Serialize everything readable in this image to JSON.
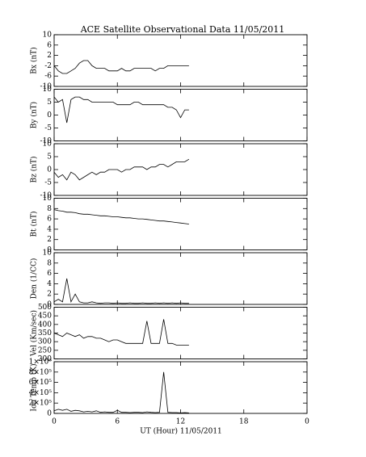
{
  "title": "ACE Satellite Observational Data   11/05/2011",
  "xlabel": "UT (Hour)  11/05/2011",
  "chart_data": [
    {
      "type": "line",
      "ylabel": "Bx (nT)",
      "ylim": [
        -10,
        10
      ],
      "yticks": [
        10,
        6,
        2,
        -2,
        -6,
        -10
      ],
      "x": [
        0,
        0.4,
        0.8,
        1.2,
        1.6,
        2,
        2.4,
        2.8,
        3.2,
        3.6,
        4,
        4.4,
        4.8,
        5.2,
        5.6,
        6,
        6.4,
        6.8,
        7.2,
        7.6,
        8,
        8.4,
        8.8,
        9.2,
        9.6,
        10,
        10.4,
        10.8,
        11.2,
        11.6,
        12,
        12.4,
        12.8
      ],
      "values": [
        -2,
        -4,
        -5,
        -5,
        -4,
        -3,
        -1,
        0,
        0,
        -2,
        -3,
        -3,
        -3,
        -4,
        -4,
        -4,
        -3,
        -4,
        -4,
        -3,
        -3,
        -3,
        -3,
        -3,
        -4,
        -3,
        -3,
        -2,
        -2,
        -2,
        -2,
        -2,
        -2
      ]
    },
    {
      "type": "line",
      "ylabel": "By (nT)",
      "ylim": [
        -10,
        10
      ],
      "yticks": [
        10,
        5,
        0,
        -5,
        -10
      ],
      "x": [
        0,
        0.4,
        0.8,
        1.2,
        1.6,
        2,
        2.4,
        2.8,
        3.2,
        3.6,
        4,
        4.4,
        4.8,
        5.2,
        5.6,
        6,
        6.4,
        6.8,
        7.2,
        7.6,
        8,
        8.4,
        8.8,
        9.2,
        9.6,
        10,
        10.4,
        10.8,
        11.2,
        11.6,
        12,
        12.4,
        12.8
      ],
      "values": [
        7,
        5,
        6,
        -3,
        6,
        7,
        7,
        6,
        6,
        5,
        5,
        5,
        5,
        5,
        5,
        4,
        4,
        4,
        4,
        5,
        5,
        4,
        4,
        4,
        4,
        4,
        4,
        3,
        3,
        2,
        -1,
        2,
        2
      ]
    },
    {
      "type": "line",
      "ylabel": "Bz (nT)",
      "ylim": [
        -10,
        10
      ],
      "yticks": [
        10,
        5,
        0,
        -5,
        -10
      ],
      "x": [
        0,
        0.4,
        0.8,
        1.2,
        1.6,
        2,
        2.4,
        2.8,
        3.2,
        3.6,
        4,
        4.4,
        4.8,
        5.2,
        5.6,
        6,
        6.4,
        6.8,
        7.2,
        7.6,
        8,
        8.4,
        8.8,
        9.2,
        9.6,
        10,
        10.4,
        10.8,
        11.2,
        11.6,
        12,
        12.4,
        12.8
      ],
      "values": [
        -1,
        -3,
        -2,
        -4,
        -1,
        -2,
        -4,
        -3,
        -2,
        -1,
        -2,
        -1,
        -1,
        0,
        0,
        0,
        -1,
        0,
        0,
        1,
        1,
        1,
        0,
        1,
        1,
        2,
        2,
        1,
        2,
        3,
        3,
        3,
        4
      ]
    },
    {
      "type": "line",
      "ylabel": "Bt (nT)",
      "ylim": [
        0,
        10
      ],
      "yticks": [
        10,
        8,
        6,
        4,
        2,
        0
      ],
      "x": [
        0,
        0.4,
        0.8,
        1.2,
        1.6,
        2,
        2.4,
        2.8,
        3.2,
        3.6,
        4,
        4.4,
        4.8,
        5.2,
        5.6,
        6,
        6.4,
        6.8,
        7.2,
        7.6,
        8,
        8.4,
        8.8,
        9.2,
        9.6,
        10,
        10.4,
        10.8,
        11.2,
        11.6,
        12,
        12.4,
        12.8
      ],
      "values": [
        7.8,
        7.6,
        7.5,
        7.3,
        7.3,
        7.2,
        7,
        6.9,
        6.9,
        6.8,
        6.7,
        6.6,
        6.6,
        6.5,
        6.4,
        6.4,
        6.3,
        6.2,
        6.2,
        6.1,
        6,
        6,
        5.9,
        5.8,
        5.7,
        5.6,
        5.6,
        5.5,
        5.4,
        5.3,
        5.2,
        5.1,
        5
      ]
    },
    {
      "type": "line",
      "ylabel": "Den (1/CC)",
      "ylim": [
        0,
        10
      ],
      "yticks": [
        10,
        8,
        6,
        4,
        2,
        0
      ],
      "x": [
        0,
        0.4,
        0.8,
        1.2,
        1.6,
        2,
        2.4,
        2.8,
        3.2,
        3.6,
        4,
        4.4,
        4.8,
        5.2,
        5.6,
        6,
        6.4,
        6.8,
        7.2,
        7.6,
        8,
        8.4,
        8.8,
        9.2,
        9.6,
        10,
        10.4,
        10.8,
        11.2,
        11.6,
        12,
        12.4,
        12.8
      ],
      "values": [
        0.5,
        1,
        0.5,
        5,
        0.5,
        2,
        0.5,
        0.3,
        0.3,
        0.5,
        0.3,
        0.2,
        0.3,
        0.3,
        0.2,
        0.3,
        0.2,
        0.2,
        0.3,
        0.2,
        0.2,
        0.3,
        0.2,
        0.2,
        0.3,
        0.2,
        0.3,
        0.2,
        0.3,
        0.2,
        0.3,
        0.2,
        0.2
      ]
    },
    {
      "type": "line",
      "ylabel": "Vel (Km/sec)",
      "ylim": [
        200,
        500
      ],
      "yticks": [
        500,
        450,
        400,
        350,
        300,
        250,
        200
      ],
      "x": [
        0,
        0.4,
        0.8,
        1.2,
        1.6,
        2,
        2.4,
        2.8,
        3.2,
        3.6,
        4,
        4.4,
        4.8,
        5.2,
        5.6,
        6,
        6.4,
        6.8,
        7.2,
        7.6,
        8,
        8.4,
        8.8,
        9.2,
        9.6,
        10,
        10.4,
        10.8,
        11.2,
        11.6,
        12,
        12.4,
        12.8
      ],
      "values": [
        350,
        340,
        330,
        350,
        340,
        330,
        340,
        320,
        330,
        330,
        320,
        320,
        310,
        300,
        310,
        310,
        300,
        290,
        290,
        290,
        290,
        290,
        420,
        290,
        290,
        290,
        430,
        290,
        290,
        280,
        280,
        280,
        280
      ]
    },
    {
      "type": "line",
      "ylabel": "Ion Temp (K)",
      "ylim": [
        0,
        1000000
      ],
      "yticks": [
        {
          "value": 1000000,
          "label": "1×10⁶"
        },
        {
          "value": 800000,
          "label": "8×10⁵"
        },
        {
          "value": 600000,
          "label": "6×10⁵"
        },
        {
          "value": 400000,
          "label": "4×10⁵"
        },
        {
          "value": 200000,
          "label": "2×10⁵"
        },
        0
      ],
      "x": [
        0,
        0.4,
        0.8,
        1.2,
        1.6,
        2,
        2.4,
        2.8,
        3.2,
        3.6,
        4,
        4.4,
        4.8,
        5.2,
        5.6,
        6,
        6.4,
        6.8,
        7.2,
        7.6,
        8,
        8.4,
        8.8,
        9.2,
        9.6,
        10,
        10.4,
        10.8,
        11.2,
        11.6,
        12,
        12.4,
        12.8
      ],
      "values": [
        50000,
        80000,
        60000,
        80000,
        40000,
        60000,
        50000,
        30000,
        40000,
        30000,
        50000,
        20000,
        30000,
        20000,
        20000,
        60000,
        20000,
        20000,
        15000,
        20000,
        20000,
        15000,
        30000,
        20000,
        15000,
        20000,
        800000,
        20000,
        15000,
        15000,
        10000,
        15000,
        10000
      ],
      "xlim": [
        0,
        24
      ],
      "xticks": [
        0,
        6,
        12,
        18,
        {
          "value": 24,
          "label": "0"
        }
      ]
    }
  ]
}
